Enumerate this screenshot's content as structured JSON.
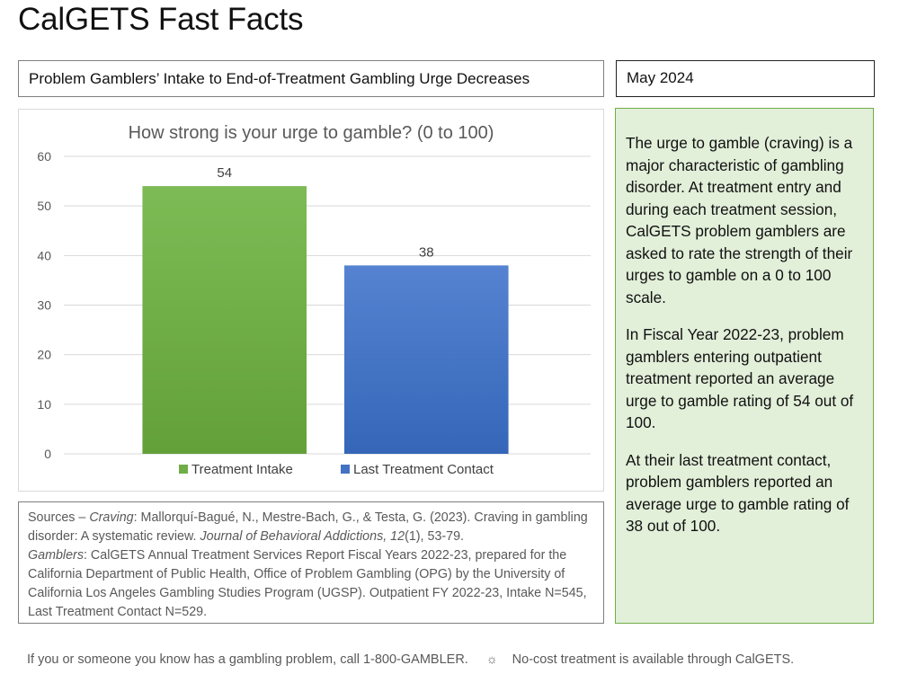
{
  "header": {
    "title": "CalGETS Fast Facts",
    "subtitle": "Problem Gamblers’ Intake to End-of-Treatment Gambling Urge Decreases",
    "date": "May 2024"
  },
  "chart_data": {
    "type": "bar",
    "title": "How strong is your urge to gamble? (0 to 100)",
    "xlabel": "",
    "ylabel": "",
    "ylim": [
      0,
      60
    ],
    "yticks": [
      0,
      10,
      20,
      30,
      40,
      50,
      60
    ],
    "grid": true,
    "legend_position": "bottom",
    "series": [
      {
        "name": "Treatment Intake",
        "value": 54,
        "label": "54",
        "color": "#70ad47"
      },
      {
        "name": "Last Treatment Contact",
        "value": 38,
        "label": "38",
        "color": "#4472c4"
      }
    ]
  },
  "sources": {
    "prefix": "Sources – ",
    "craving_label": "Craving",
    "craving_text_1": ": Mallorquí-Bagué, N., Mestre-Bach, G., & Testa, G. (2023). Craving in gambling disorder: A systematic review. ",
    "journal": "Journal of Behavioral Addictions, 12",
    "craving_text_2": "(1), 53-79.",
    "gamblers_label": "Gamblers",
    "gamblers_text": ": CalGETS Annual Treatment Services Report Fiscal Years 2022-23, prepared for the California Department of Public Health, Office of Problem Gambling (OPG) by the University of California Los Angeles Gambling Studies Program (UGSP). Outpatient FY 2022-23, Intake N=545, Last Treatment Contact N=529."
  },
  "info_panel": {
    "paragraphs": [
      "The urge to gamble (craving) is a major characteristic of gambling disorder. At treatment entry and during each treatment session, CalGETS problem gamblers are asked to rate the strength of their urges to gamble on a 0 to 100 scale.",
      "In Fiscal Year 2022-23, problem gamblers entering outpatient treatment reported an average urge to gamble rating of 54 out of 100.",
      "At their last treatment contact, problem gamblers reported an average urge to gamble rating of 38 out of 100."
    ]
  },
  "footer": {
    "left": "If you or someone you know has a gambling problem, call 1-800-GAMBLER.",
    "separator_icon": "sun-icon",
    "separator_glyph": "☼",
    "right": "No-cost treatment is available through CalGETS."
  }
}
